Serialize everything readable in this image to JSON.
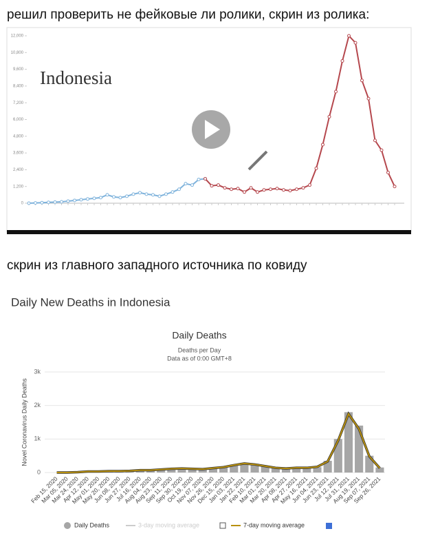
{
  "captions": [
    "решил проверить не фейковые ли ролики, скрин из ролика:",
    "скрин из главного западного источника по ковиду"
  ],
  "chart_data": [
    {
      "type": "line",
      "title": "Indonesia",
      "categories": [
        null,
        null,
        null,
        null,
        null,
        null,
        null,
        null,
        null,
        null,
        null,
        null,
        null,
        null,
        null,
        null,
        null,
        null,
        null,
        null,
        null,
        null,
        null,
        null,
        null,
        null,
        null,
        null,
        null,
        null,
        null,
        null,
        null,
        null,
        null,
        null,
        null,
        null,
        null,
        null,
        null,
        null,
        null,
        null,
        null,
        null,
        null,
        null,
        null,
        null,
        null,
        null,
        null,
        null,
        null,
        null,
        null
      ],
      "series": [
        {
          "color": "#7fb3dc",
          "values": [
            0,
            20,
            40,
            60,
            80,
            100,
            150,
            200,
            250,
            300,
            350,
            400,
            600,
            450,
            400,
            500,
            650,
            750,
            650,
            600,
            500,
            650,
            800,
            1000,
            1400,
            1300,
            1700,
            1750,
            null,
            null,
            null,
            null,
            null,
            null,
            null,
            null,
            null,
            null,
            null,
            null,
            null,
            null,
            null,
            null,
            null,
            null,
            null,
            null,
            null,
            null,
            null,
            null,
            null,
            null,
            null,
            null,
            null
          ]
        },
        {
          "color": "#b5474d",
          "values": [
            null,
            null,
            null,
            null,
            null,
            null,
            null,
            null,
            null,
            null,
            null,
            null,
            null,
            null,
            null,
            null,
            null,
            null,
            null,
            null,
            null,
            null,
            null,
            null,
            null,
            null,
            null,
            1750,
            1250,
            1300,
            1100,
            1000,
            1050,
            800,
            1100,
            800,
            950,
            1000,
            1050,
            950,
            900,
            1000,
            1100,
            1300,
            2500,
            4200,
            6200,
            8000,
            10200,
            12000,
            11500,
            8800,
            7500,
            4500,
            3800,
            2200,
            1200
          ]
        }
      ],
      "ylim": [
        0,
        12000
      ],
      "yticks": [
        0,
        {
          "value": 1200,
          "label": "1,200"
        },
        {
          "value": 2400,
          "label": "2,400"
        },
        {
          "value": 3600,
          "label": "3,600"
        },
        {
          "value": 4800,
          "label": "4,800"
        },
        {
          "value": 6000,
          "label": "6,000"
        },
        {
          "value": 7200,
          "label": "7,200"
        },
        {
          "value": 8400,
          "label": "8,400"
        },
        {
          "value": 9600,
          "label": "9,600"
        },
        {
          "value": 10800,
          "label": "10,800"
        },
        {
          "value": 12000,
          "label": "12,000"
        }
      ],
      "grid": false
    },
    {
      "type": "bar_line",
      "header": "Daily New Deaths in Indonesia",
      "title": "Daily Deaths",
      "subtitle": "Deaths per Day",
      "note": "Data as of 0:00 GMT+8",
      "y_label": "Novel Coronavirus Daily Deaths",
      "categories": [
        "Feb 15, 2020",
        "Mar 05, 2020",
        "Mar 24, 2020",
        "Apr 12, 2020",
        "May 01, 2020",
        "May 20, 2020",
        "Jun 08, 2020",
        "Jun 27, 2020",
        "Jul 16, 2020",
        "Aug 04, 2020",
        "Aug 23, 2020",
        "Sep 11, 2020",
        "Sep 30, 2020",
        "Oct 19, 2020",
        "Nov 07, 2020",
        "Nov 26, 2020",
        "Dec 15, 2020",
        "Jan 03, 2021",
        "Jan 22, 2021",
        "Feb 10, 2021",
        "Mar 01, 2021",
        "Mar 20, 2021",
        "Apr 08, 2021",
        "Apr 27, 2021",
        "May 16, 2021",
        "Jun 04, 2021",
        "Jun 23, 2021",
        "Jul 12, 2021",
        "Jul 31, 2021",
        "Aug 19, 2021",
        "Sep 07, 2021",
        "Sep 26, 2021"
      ],
      "series": [
        {
          "name": "Daily Deaths",
          "kind": "bar",
          "color": "#a6a6a6",
          "values": [
            0,
            0,
            10,
            40,
            20,
            50,
            40,
            50,
            70,
            60,
            80,
            110,
            130,
            110,
            100,
            130,
            160,
            230,
            290,
            260,
            200,
            130,
            110,
            150,
            140,
            160,
            350,
            1000,
            1800,
            1400,
            500,
            150
          ]
        },
        {
          "name": "7-day moving average",
          "kind": "line",
          "color": "#b8900f",
          "values": [
            0,
            0,
            10,
            30,
            30,
            40,
            40,
            50,
            70,
            70,
            90,
            110,
            120,
            110,
            100,
            130,
            160,
            220,
            270,
            240,
            190,
            140,
            120,
            140,
            140,
            170,
            330,
            950,
            1750,
            1300,
            480,
            130
          ]
        }
      ],
      "disabled_legend": [
        "3-day moving average"
      ],
      "ylim": [
        0,
        3000
      ],
      "yticks": [
        0,
        {
          "value": 1000,
          "label": "1k"
        },
        {
          "value": 2000,
          "label": "2k"
        },
        {
          "value": 3000,
          "label": "3k"
        }
      ],
      "grid": true
    }
  ]
}
